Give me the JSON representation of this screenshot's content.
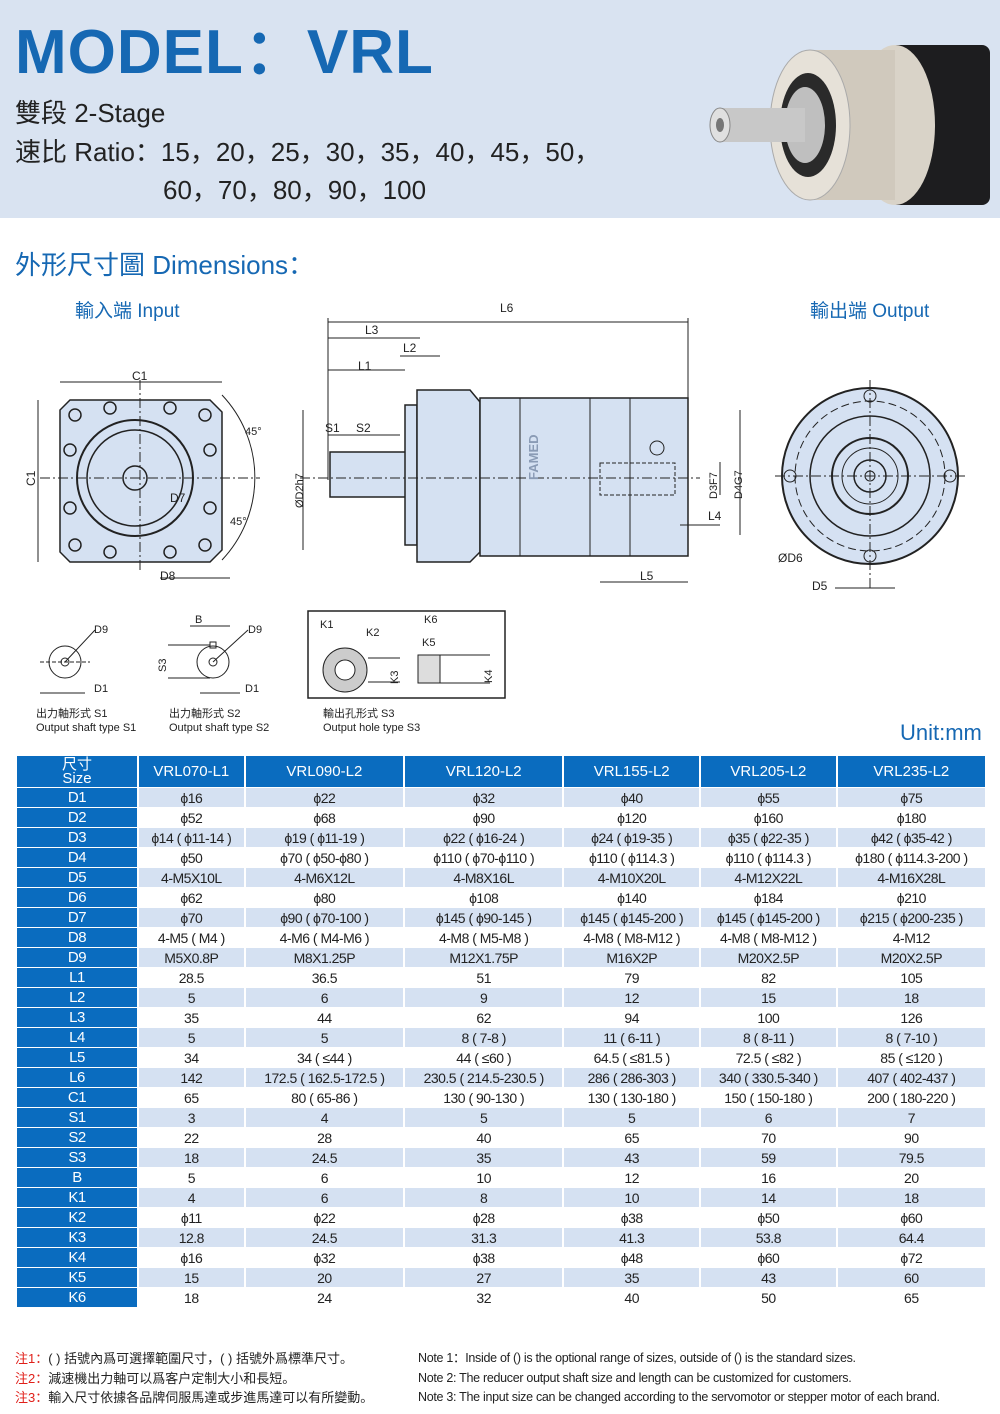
{
  "header": {
    "title": "MODEL：VRL",
    "stage": "雙段 2-Stage",
    "ratio_line1": "速比 Ratio：15，20，25，30，35，40，45，50，",
    "ratio_line2": "60，70，80，90，100"
  },
  "dimensions": {
    "heading": "外形尺寸圖 Dimensions：",
    "input_label": "輸入端 Input",
    "output_label": "輸出端 Output",
    "unit": "Unit:mm",
    "brand": "FAMED",
    "drawing_labels": {
      "C1": "C1",
      "D7": "D7",
      "D8": "D8",
      "a45": "45°",
      "L6": "L6",
      "L3": "L3",
      "L2": "L2",
      "L1": "L1",
      "S1": "S1",
      "S2": "S2",
      "D2": "ØD2h7",
      "D3": "D3F7",
      "D4": "D4G7",
      "L4": "L4",
      "L5": "L5",
      "D6": "ØD6",
      "D5": "D5",
      "D9": "D9",
      "D1": "D1",
      "B": "B",
      "S3": "S3",
      "K1": "K1",
      "K2": "K2",
      "K3": "K3",
      "K4": "K4",
      "K5": "K5",
      "K6": "K6"
    },
    "captions": [
      {
        "zh": "出力軸形式 S1",
        "en": "Output shaft type S1"
      },
      {
        "zh": "出力軸形式 S2",
        "en": "Output shaft type S2"
      },
      {
        "zh": "輸出孔形式 S3",
        "en": "Output hole type S3"
      }
    ]
  },
  "table": {
    "corner_zh": "尺寸",
    "corner_en": "Size",
    "models": [
      "VRL070-L1",
      "VRL090-L2",
      "VRL120-L2",
      "VRL155-L2",
      "VRL205-L2",
      "VRL235-L2"
    ],
    "rows": [
      {
        "label": "D1",
        "values": [
          "ϕ16",
          "ϕ22",
          "ϕ32",
          "ϕ40",
          "ϕ55",
          "ϕ75"
        ]
      },
      {
        "label": "D2",
        "values": [
          "ϕ52",
          "ϕ68",
          "ϕ90",
          "ϕ120",
          "ϕ160",
          "ϕ180"
        ]
      },
      {
        "label": "D3",
        "values": [
          "ϕ14 ( ϕ11-14 )",
          "ϕ19 ( ϕ11-19 )",
          "ϕ22 ( ϕ16-24 )",
          "ϕ24 ( ϕ19-35 )",
          "ϕ35 ( ϕ22-35 )",
          "ϕ42 ( ϕ35-42 )"
        ]
      },
      {
        "label": "D4",
        "values": [
          "ϕ50",
          "ϕ70 ( ϕ50-ϕ80 )",
          "ϕ110 ( ϕ70-ϕ110 )",
          "ϕ110 ( ϕ114.3 )",
          "ϕ110 ( ϕ114.3 )",
          "ϕ180 ( ϕ114.3-200 )"
        ]
      },
      {
        "label": "D5",
        "values": [
          "4-M5X10L",
          "4-M6X12L",
          "4-M8X16L",
          "4-M10X20L",
          "4-M12X22L",
          "4-M16X28L"
        ]
      },
      {
        "label": "D6",
        "values": [
          "ϕ62",
          "ϕ80",
          "ϕ108",
          "ϕ140",
          "ϕ184",
          "ϕ210"
        ]
      },
      {
        "label": "D7",
        "values": [
          "ϕ70",
          "ϕ90 ( ϕ70-100 )",
          "ϕ145 ( ϕ90-145 )",
          "ϕ145 ( ϕ145-200 )",
          "ϕ145 ( ϕ145-200 )",
          "ϕ215 ( ϕ200-235 )"
        ]
      },
      {
        "label": "D8",
        "values": [
          "4-M5 ( M4 )",
          "4-M6 ( M4-M6 )",
          "4-M8 ( M5-M8 )",
          "4-M8 ( M8-M12 )",
          "4-M8 ( M8-M12 )",
          "4-M12"
        ]
      },
      {
        "label": "D9",
        "values": [
          "M5X0.8P",
          "M8X1.25P",
          "M12X1.75P",
          "M16X2P",
          "M20X2.5P",
          "M20X2.5P"
        ]
      },
      {
        "label": "L1",
        "values": [
          "28.5",
          "36.5",
          "51",
          "79",
          "82",
          "105"
        ]
      },
      {
        "label": "L2",
        "values": [
          "5",
          "6",
          "9",
          "12",
          "15",
          "18"
        ]
      },
      {
        "label": "L3",
        "values": [
          "35",
          "44",
          "62",
          "94",
          "100",
          "126"
        ]
      },
      {
        "label": "L4",
        "values": [
          "5",
          "5",
          "8 ( 7-8 )",
          "11 ( 6-11 )",
          "8 ( 8-11 )",
          "8 ( 7-10 )"
        ]
      },
      {
        "label": "L5",
        "values": [
          "34",
          "34 ( ≤44 )",
          "44 ( ≤60 )",
          "64.5 ( ≤81.5 )",
          "72.5 ( ≤82 )",
          "85 ( ≤120 )"
        ]
      },
      {
        "label": "L6",
        "values": [
          "142",
          "172.5 ( 162.5-172.5 )",
          "230.5 ( 214.5-230.5 )",
          "286 ( 286-303 )",
          "340 ( 330.5-340 )",
          "407 ( 402-437 )"
        ]
      },
      {
        "label": "C1",
        "values": [
          "65",
          "80 ( 65-86 )",
          "130 ( 90-130 )",
          "130 ( 130-180 )",
          "150 ( 150-180 )",
          "200 ( 180-220 )"
        ]
      },
      {
        "label": "S1",
        "values": [
          "3",
          "4",
          "5",
          "5",
          "6",
          "7"
        ]
      },
      {
        "label": "S2",
        "values": [
          "22",
          "28",
          "40",
          "65",
          "70",
          "90"
        ]
      },
      {
        "label": "S3",
        "values": [
          "18",
          "24.5",
          "35",
          "43",
          "59",
          "79.5"
        ]
      },
      {
        "label": "B",
        "values": [
          "5",
          "6",
          "10",
          "12",
          "16",
          "20"
        ]
      },
      {
        "label": "K1",
        "values": [
          "4",
          "6",
          "8",
          "10",
          "14",
          "18"
        ]
      },
      {
        "label": "K2",
        "values": [
          "ϕ11",
          "ϕ22",
          "ϕ28",
          "ϕ38",
          "ϕ50",
          "ϕ60"
        ]
      },
      {
        "label": "K3",
        "values": [
          "12.8",
          "24.5",
          "31.3",
          "41.3",
          "53.8",
          "64.4"
        ]
      },
      {
        "label": "K4",
        "values": [
          "ϕ16",
          "ϕ32",
          "ϕ38",
          "ϕ48",
          "ϕ60",
          "ϕ72"
        ]
      },
      {
        "label": "K5",
        "values": [
          "15",
          "20",
          "27",
          "35",
          "43",
          "60"
        ]
      },
      {
        "label": "K6",
        "values": [
          "18",
          "24",
          "32",
          "40",
          "50",
          "65"
        ]
      }
    ]
  },
  "notes": [
    {
      "tag": "注1：",
      "zh": "( ) 括號內爲可選擇範圍尺寸，( ) 括號外爲標準尺寸。",
      "en": "Note 1：Inside of () is the optional range of sizes, outside of () is the standard sizes."
    },
    {
      "tag": "注2：",
      "zh": "減速機出力軸可以爲客户定制大小和長短。",
      "en": "Note 2: The reducer output shaft size and length can be customized for customers."
    },
    {
      "tag": "注3：",
      "zh": "輸入尺寸依據各品牌伺服馬達或步進馬達可以有所變動。",
      "en": "Note 3: The input size can be changed according to the servomotor or stepper motor of each brand."
    }
  ],
  "colors": {
    "brand_blue": "#1668b3",
    "table_blue": "#0a6cbf",
    "row_tint": "#d5e1f2",
    "header_band": "#d9e3f1",
    "note_red": "#e0201a"
  }
}
